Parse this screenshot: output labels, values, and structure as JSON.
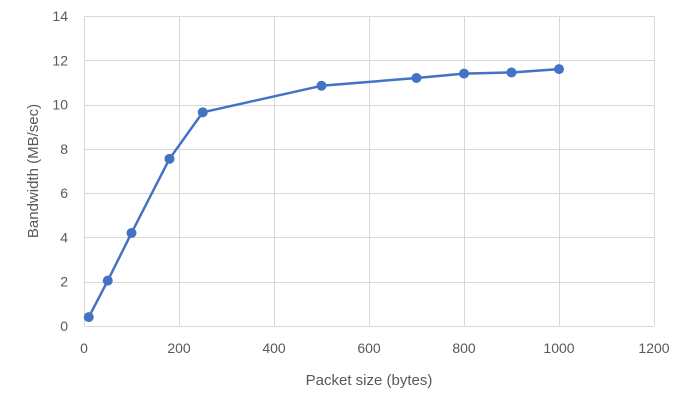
{
  "chart_data": {
    "type": "line",
    "title": "",
    "xlabel": "Packet size (bytes)",
    "ylabel": "Bandwidth (MB/sec)",
    "xlim": [
      0,
      1200
    ],
    "ylim": [
      0,
      14
    ],
    "x_ticks": [
      0,
      200,
      400,
      600,
      800,
      1000,
      1200
    ],
    "y_ticks": [
      0,
      2,
      4,
      6,
      8,
      10,
      12,
      14
    ],
    "grid": true,
    "legend": "none",
    "series": [
      {
        "color": "#4472c4",
        "x": [
          10,
          50,
          100,
          180,
          250,
          500,
          700,
          800,
          900,
          1000
        ],
        "y": [
          0.4,
          2.05,
          4.2,
          7.55,
          9.65,
          10.85,
          11.2,
          11.4,
          11.45,
          11.6
        ]
      }
    ]
  }
}
